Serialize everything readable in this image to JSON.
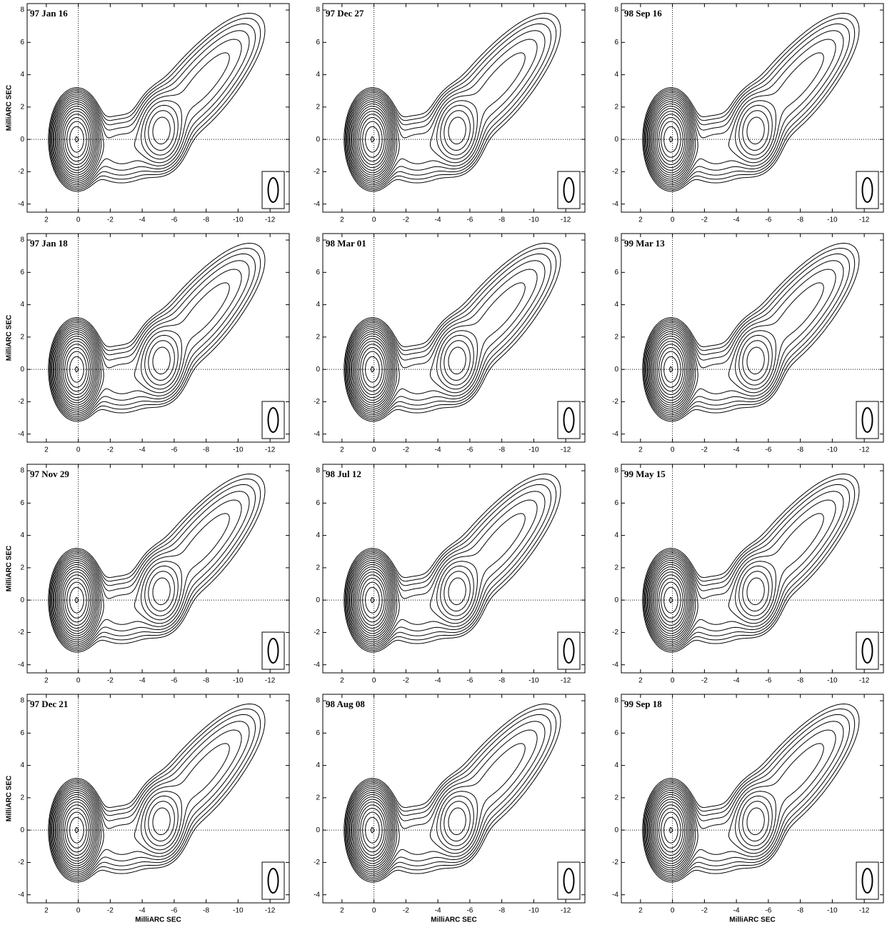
{
  "chart_data": [
    {
      "type": "contour",
      "title": "97 Jan 16",
      "ylabel": "MilliARC SEC",
      "xlim": [
        3.2,
        -13.2
      ],
      "ylim": [
        -4.5,
        8.4
      ],
      "xticks": [
        2,
        0,
        -2,
        -4,
        -6,
        -8,
        -10,
        -12
      ],
      "yticks": [
        -4,
        -2,
        0,
        2,
        4,
        6,
        8
      ],
      "crosshair": true,
      "color": "#000000"
    },
    {
      "type": "contour",
      "title": "97 Dec 27",
      "xlim": [
        3.2,
        -13.2
      ],
      "ylim": [
        -4.5,
        8.4
      ],
      "xticks": [
        2,
        0,
        -2,
        -4,
        -6,
        -8,
        -10,
        -12
      ],
      "yticks": [
        -4,
        -2,
        0,
        2,
        4,
        6,
        8
      ],
      "crosshair": true,
      "color": "#000000"
    },
    {
      "type": "contour",
      "title": "98 Sep 16",
      "xlim": [
        3.2,
        -13.2
      ],
      "ylim": [
        -4.5,
        8.4
      ],
      "xticks": [
        2,
        0,
        -2,
        -4,
        -6,
        -8,
        -10,
        -12
      ],
      "yticks": [
        -4,
        -2,
        0,
        2,
        4,
        6,
        8
      ],
      "crosshair": true,
      "color": "#000000"
    },
    {
      "type": "contour",
      "title": "97 Jan 18",
      "ylabel": "MilliARC SEC",
      "xlim": [
        3.2,
        -13.2
      ],
      "ylim": [
        -4.5,
        8.4
      ],
      "xticks": [
        2,
        0,
        -2,
        -4,
        -6,
        -8,
        -10,
        -12
      ],
      "yticks": [
        -4,
        -2,
        0,
        2,
        4,
        6,
        8
      ],
      "crosshair": true,
      "color": "#000000"
    },
    {
      "type": "contour",
      "title": "98 Mar 01",
      "xlim": [
        3.2,
        -13.2
      ],
      "ylim": [
        -4.5,
        8.4
      ],
      "xticks": [
        2,
        0,
        -2,
        -4,
        -6,
        -8,
        -10,
        -12
      ],
      "yticks": [
        -4,
        -2,
        0,
        2,
        4,
        6,
        8
      ],
      "crosshair": true,
      "color": "#000000"
    },
    {
      "type": "contour",
      "title": "99 Mar 13",
      "xlim": [
        3.2,
        -13.2
      ],
      "ylim": [
        -4.5,
        8.4
      ],
      "xticks": [
        2,
        0,
        -2,
        -4,
        -6,
        -8,
        -10,
        -12
      ],
      "yticks": [
        -4,
        -2,
        0,
        2,
        4,
        6,
        8
      ],
      "crosshair": true,
      "color": "#000000"
    },
    {
      "type": "contour",
      "title": "97 Nov 29",
      "ylabel": "MilliARC SEC",
      "xlim": [
        3.2,
        -13.2
      ],
      "ylim": [
        -4.5,
        8.4
      ],
      "xticks": [
        2,
        0,
        -2,
        -4,
        -6,
        -8,
        -10,
        -12
      ],
      "yticks": [
        -4,
        -2,
        0,
        2,
        4,
        6,
        8
      ],
      "crosshair": true,
      "color": "#000000"
    },
    {
      "type": "contour",
      "title": "98 Jul 12",
      "xlim": [
        3.2,
        -13.2
      ],
      "ylim": [
        -4.5,
        8.4
      ],
      "xticks": [
        2,
        0,
        -2,
        -4,
        -6,
        -8,
        -10,
        -12
      ],
      "yticks": [
        -4,
        -2,
        0,
        2,
        4,
        6,
        8
      ],
      "crosshair": true,
      "color": "#000000"
    },
    {
      "type": "contour",
      "title": "99 May 15",
      "xlim": [
        3.2,
        -13.2
      ],
      "ylim": [
        -4.5,
        8.4
      ],
      "xticks": [
        2,
        0,
        -2,
        -4,
        -6,
        -8,
        -10,
        -12
      ],
      "yticks": [
        -4,
        -2,
        0,
        2,
        4,
        6,
        8
      ],
      "crosshair": true,
      "color": "#000000"
    },
    {
      "type": "contour",
      "title": "97 Dec 21",
      "ylabel": "MilliARC SEC",
      "xlabel": "MilliARC SEC",
      "xlim": [
        3.2,
        -13.2
      ],
      "ylim": [
        -4.5,
        8.4
      ],
      "xticks": [
        2,
        0,
        -2,
        -4,
        -6,
        -8,
        -10,
        -12
      ],
      "yticks": [
        -4,
        -2,
        0,
        2,
        4,
        6,
        8
      ],
      "crosshair": true,
      "color": "#000000"
    },
    {
      "type": "contour",
      "title": "98 Aug 08",
      "xlabel": "MilliARC SEC",
      "xlim": [
        3.2,
        -13.2
      ],
      "ylim": [
        -4.5,
        8.4
      ],
      "xticks": [
        2,
        0,
        -2,
        -4,
        -6,
        -8,
        -10,
        -12
      ],
      "yticks": [
        -4,
        -2,
        0,
        2,
        4,
        6,
        8
      ],
      "crosshair": true,
      "color": "#000000"
    },
    {
      "type": "contour",
      "title": "99 Sep 18",
      "xlabel": "MilliARC SEC",
      "xlim": [
        3.2,
        -13.2
      ],
      "ylim": [
        -4.5,
        8.4
      ],
      "xticks": [
        2,
        0,
        -2,
        -4,
        -6,
        -8,
        -10,
        -12
      ],
      "yticks": [
        -4,
        -2,
        0,
        2,
        4,
        6,
        8
      ],
      "crosshair": true,
      "color": "#000000"
    }
  ]
}
